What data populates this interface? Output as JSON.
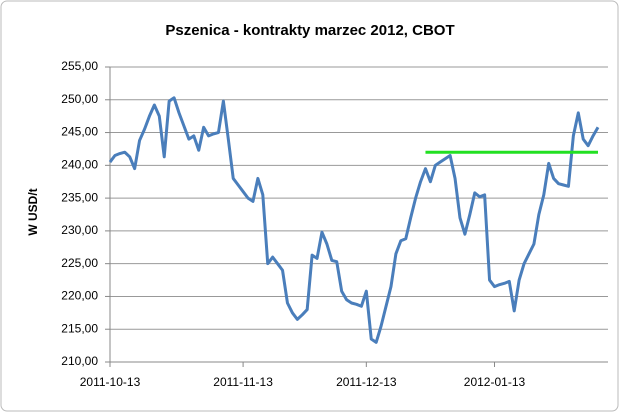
{
  "chart_data": {
    "type": "line",
    "title": "Pszenica - kontrakty marzec 2012, CBOT",
    "y_label": "W USD/t",
    "categories": [
      "2011-10-13",
      null,
      null,
      null,
      null,
      null,
      null,
      null,
      null,
      null,
      null,
      null,
      null,
      null,
      null,
      null,
      null,
      null,
      null,
      null,
      null,
      null,
      null,
      null,
      null,
      null,
      null,
      "2011-11-13",
      null,
      null,
      null,
      null,
      null,
      null,
      null,
      null,
      null,
      null,
      null,
      null,
      null,
      null,
      null,
      null,
      null,
      null,
      null,
      null,
      null,
      null,
      null,
      null,
      "2011-12-13",
      null,
      null,
      null,
      null,
      null,
      null,
      null,
      null,
      null,
      null,
      null,
      null,
      null,
      null,
      null,
      null,
      null,
      null,
      null,
      null,
      null,
      null,
      null,
      null,
      null,
      "2012-01-13",
      null,
      null,
      null,
      null,
      null,
      null,
      null,
      null,
      null,
      null,
      null,
      null,
      null,
      null,
      null,
      null,
      null,
      null,
      null,
      null,
      null
    ],
    "series": [
      {
        "color": "#4a7ebb",
        "values": [
          240.5,
          241.5,
          241.8,
          242.0,
          241.3,
          239.5,
          243.8,
          245.5,
          247.5,
          249.2,
          247.5,
          241.3,
          249.8,
          250.3,
          248.0,
          246.0,
          244.0,
          244.5,
          242.3,
          245.8,
          244.5,
          244.8,
          245.0,
          249.8,
          244.0,
          238.0,
          237.0,
          236.0,
          235.0,
          234.5,
          238.0,
          235.5,
          225.0,
          226.0,
          225.0,
          224.0,
          219.0,
          217.5,
          216.5,
          217.2,
          218.0,
          226.3,
          225.8,
          229.8,
          228.0,
          225.5,
          225.3,
          220.8,
          219.5,
          219.0,
          218.8,
          218.5,
          220.8,
          213.5,
          213.0,
          215.5,
          218.5,
          221.5,
          226.5,
          228.5,
          228.8,
          232.0,
          235.0,
          237.5,
          239.5,
          237.5,
          240.0,
          240.5,
          241.0,
          241.5,
          238.0,
          232.0,
          229.5,
          232.5,
          235.8,
          235.2,
          235.5,
          222.5,
          221.5,
          221.8,
          222.0,
          222.3,
          217.8,
          222.5,
          225.0,
          226.5,
          228.0,
          232.5,
          235.5,
          240.3,
          238.0,
          237.2,
          237.0,
          236.8,
          244.5,
          248.0,
          244.0,
          243.0,
          244.5,
          245.8
        ]
      },
      {
        "color": "#22e022",
        "values": [
          null,
          null,
          null,
          null,
          null,
          null,
          null,
          null,
          null,
          null,
          null,
          null,
          null,
          null,
          null,
          null,
          null,
          null,
          null,
          null,
          null,
          null,
          null,
          null,
          null,
          null,
          null,
          null,
          null,
          null,
          null,
          null,
          null,
          null,
          null,
          null,
          null,
          null,
          null,
          null,
          null,
          null,
          null,
          null,
          null,
          null,
          null,
          null,
          null,
          null,
          null,
          null,
          null,
          null,
          null,
          null,
          null,
          null,
          null,
          null,
          null,
          null,
          null,
          null,
          242,
          242,
          242,
          242,
          242,
          242,
          242,
          242,
          242,
          242,
          242,
          242,
          242,
          242,
          242,
          242,
          242,
          242,
          242,
          242,
          242,
          242,
          242,
          242,
          242,
          242,
          242,
          242,
          242,
          242,
          242,
          242,
          242,
          242,
          242,
          242
        ]
      }
    ],
    "ylim": [
      210,
      255
    ],
    "yticks": [
      {
        "value": 210,
        "label": "210,00"
      },
      {
        "value": 215,
        "label": "215,00"
      },
      {
        "value": 220,
        "label": "220,00"
      },
      {
        "value": 225,
        "label": "225,00"
      },
      {
        "value": 230,
        "label": "230,00"
      },
      {
        "value": 235,
        "label": "235,00"
      },
      {
        "value": 240,
        "label": "240,00"
      },
      {
        "value": 245,
        "label": "245,00"
      },
      {
        "value": 250,
        "label": "250,00"
      },
      {
        "value": 255,
        "label": "255,00"
      }
    ],
    "grid": true
  }
}
